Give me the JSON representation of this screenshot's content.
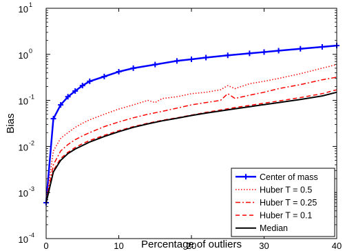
{
  "chart_data": {
    "type": "line",
    "title": "",
    "xlabel": "Percentage of outliers",
    "ylabel": "Bias",
    "xlim": [
      0,
      40
    ],
    "ylim": [
      0.0001,
      10
    ],
    "yscale": "log",
    "grid": false,
    "legend_position": "bottom-right",
    "x_ticks": [
      "0",
      "10",
      "20",
      "30",
      "40"
    ],
    "y_ticks": [
      {
        "base": "10",
        "exp": "1",
        "value": 10
      },
      {
        "base": "10",
        "exp": "0",
        "value": 1
      },
      {
        "base": "10",
        "exp": "-1",
        "value": 0.1
      },
      {
        "base": "10",
        "exp": "-2",
        "value": 0.01
      },
      {
        "base": "10",
        "exp": "-3",
        "value": 0.001
      },
      {
        "base": "10",
        "exp": "-4",
        "value": 0.0001
      }
    ],
    "series": [
      {
        "name": "Center of mass",
        "color": "#0000ff",
        "style": "solid-plus",
        "x": [
          0,
          1,
          2,
          3,
          4,
          5,
          6,
          8,
          10,
          12,
          15,
          18,
          20,
          22,
          25,
          28,
          30,
          32,
          35,
          38,
          40
        ],
        "y": [
          0.0006,
          0.04,
          0.08,
          0.12,
          0.16,
          0.21,
          0.26,
          0.33,
          0.42,
          0.5,
          0.6,
          0.72,
          0.78,
          0.85,
          0.95,
          1.05,
          1.12,
          1.2,
          1.32,
          1.45,
          1.55
        ]
      },
      {
        "name": "Huber T = 0.5",
        "color": "#ff0000",
        "style": "dotted",
        "x": [
          0,
          1,
          2,
          3,
          4,
          5,
          6,
          8,
          10,
          12,
          14,
          15,
          16,
          18,
          20,
          22,
          24,
          25,
          26,
          28,
          30,
          32,
          35,
          38,
          40
        ],
        "y": [
          0.0006,
          0.008,
          0.015,
          0.02,
          0.026,
          0.032,
          0.038,
          0.05,
          0.065,
          0.08,
          0.1,
          0.09,
          0.11,
          0.12,
          0.14,
          0.15,
          0.17,
          0.21,
          0.18,
          0.23,
          0.26,
          0.3,
          0.38,
          0.5,
          0.6
        ]
      },
      {
        "name": "Huber T = 0.25",
        "color": "#ff0000",
        "style": "dashdot",
        "x": [
          0,
          1,
          2,
          3,
          4,
          5,
          6,
          8,
          10,
          12,
          14,
          16,
          18,
          20,
          22,
          24,
          25,
          26,
          28,
          30,
          32,
          35,
          38,
          40
        ],
        "y": [
          0.0006,
          0.004,
          0.008,
          0.011,
          0.014,
          0.017,
          0.02,
          0.027,
          0.034,
          0.042,
          0.05,
          0.058,
          0.068,
          0.08,
          0.09,
          0.1,
          0.14,
          0.11,
          0.13,
          0.15,
          0.18,
          0.22,
          0.28,
          0.32
        ]
      },
      {
        "name": "Huber T = 0.1",
        "color": "#ff0000",
        "style": "dashed",
        "x": [
          0,
          1,
          2,
          3,
          4,
          5,
          6,
          8,
          10,
          12,
          14,
          16,
          18,
          20,
          22,
          24,
          26,
          28,
          30,
          32,
          35,
          38,
          40
        ],
        "y": [
          0.0006,
          0.003,
          0.0055,
          0.0075,
          0.0095,
          0.0115,
          0.0135,
          0.0175,
          0.022,
          0.027,
          0.032,
          0.037,
          0.042,
          0.048,
          0.055,
          0.062,
          0.07,
          0.078,
          0.087,
          0.097,
          0.115,
          0.14,
          0.17
        ]
      },
      {
        "name": "Median",
        "color": "#000000",
        "style": "solid",
        "x": [
          0,
          1,
          2,
          3,
          4,
          5,
          6,
          8,
          10,
          12,
          14,
          16,
          18,
          20,
          22,
          24,
          26,
          28,
          30,
          32,
          35,
          38,
          40
        ],
        "y": [
          0.0006,
          0.0028,
          0.005,
          0.007,
          0.0088,
          0.0105,
          0.0125,
          0.0165,
          0.021,
          0.026,
          0.031,
          0.036,
          0.041,
          0.047,
          0.053,
          0.059,
          0.066,
          0.073,
          0.081,
          0.09,
          0.105,
          0.125,
          0.15
        ]
      }
    ]
  }
}
